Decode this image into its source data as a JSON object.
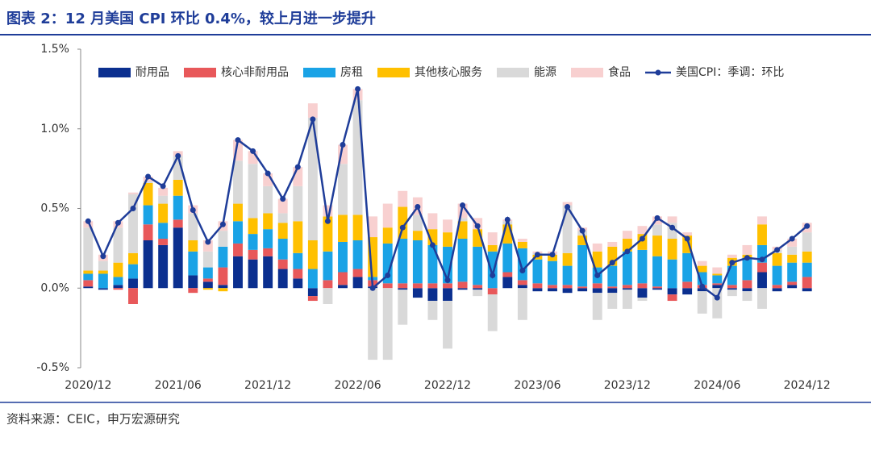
{
  "header": {
    "title": "图表 2：12 月美国 CPI 环比 0.4%，较上月进一步提升"
  },
  "footer": {
    "source": "资料来源：CEIC，申万宏源研究"
  },
  "chart_data": {
    "type": "bar",
    "categories": [
      "2020/12",
      null,
      null,
      null,
      null,
      null,
      "2021/06",
      null,
      null,
      null,
      null,
      null,
      "2021/12",
      null,
      null,
      null,
      null,
      null,
      "2022/06",
      null,
      null,
      null,
      null,
      null,
      "2022/12",
      null,
      null,
      null,
      null,
      null,
      "2023/06",
      null,
      null,
      null,
      null,
      null,
      "2023/12",
      null,
      null,
      null,
      null,
      null,
      "2024/06",
      null,
      null,
      null,
      null,
      null,
      "2024/12"
    ],
    "series": [
      {
        "name": "耐用品",
        "color": "#0b2f8f",
        "values": [
          0.01,
          -0.01,
          0.02,
          0.06,
          0.3,
          0.27,
          0.38,
          0.08,
          0.04,
          0.02,
          0.2,
          0.18,
          0.2,
          0.12,
          0.06,
          -0.05,
          0.0,
          0.02,
          0.07,
          0.01,
          0.0,
          -0.01,
          -0.06,
          -0.08,
          -0.08,
          -0.01,
          -0.01,
          0.0,
          0.07,
          0.02,
          -0.02,
          -0.02,
          -0.03,
          -0.02,
          -0.03,
          -0.03,
          -0.01,
          -0.06,
          -0.01,
          -0.04,
          -0.04,
          -0.02,
          0.02,
          -0.01,
          -0.02,
          0.1,
          -0.02,
          0.02,
          -0.02
        ]
      },
      {
        "name": "核心非耐用品",
        "color": "#e8585a",
        "values": [
          0.04,
          0.0,
          -0.01,
          -0.1,
          0.1,
          0.04,
          0.05,
          -0.03,
          0.02,
          0.11,
          0.08,
          0.06,
          0.05,
          0.06,
          0.06,
          -0.03,
          0.05,
          0.08,
          0.05,
          0.04,
          0.03,
          0.03,
          0.03,
          0.03,
          0.03,
          0.04,
          0.02,
          -0.04,
          0.03,
          0.03,
          0.03,
          0.02,
          0.02,
          0.01,
          0.03,
          0.01,
          0.02,
          0.03,
          0.01,
          -0.04,
          0.04,
          0.02,
          0.01,
          0.02,
          0.05,
          0.06,
          0.02,
          0.02,
          0.07
        ]
      },
      {
        "name": "房租",
        "color": "#1aa3e6",
        "values": [
          0.04,
          0.09,
          0.05,
          0.09,
          0.12,
          0.1,
          0.15,
          0.15,
          0.07,
          0.13,
          0.14,
          0.1,
          0.12,
          0.13,
          0.1,
          0.12,
          0.18,
          0.19,
          0.18,
          0.02,
          0.25,
          0.28,
          0.27,
          0.24,
          0.23,
          0.27,
          0.24,
          0.23,
          0.18,
          0.2,
          0.15,
          0.15,
          0.12,
          0.26,
          0.1,
          0.13,
          0.21,
          0.21,
          0.19,
          0.18,
          0.18,
          0.08,
          0.05,
          0.12,
          0.14,
          0.11,
          0.12,
          0.12,
          0.09
        ]
      },
      {
        "name": "其他核心服务",
        "color": "#ffc000",
        "values": [
          0.02,
          0.02,
          0.09,
          0.07,
          0.14,
          0.12,
          0.1,
          0.07,
          -0.01,
          -0.02,
          0.11,
          0.1,
          0.1,
          0.1,
          0.2,
          0.18,
          0.22,
          0.17,
          0.16,
          0.25,
          0.1,
          0.2,
          0.06,
          0.1,
          0.09,
          0.11,
          0.11,
          0.04,
          0.12,
          0.04,
          0.03,
          0.04,
          0.08,
          0.06,
          0.1,
          0.12,
          0.08,
          0.1,
          0.13,
          0.13,
          0.11,
          0.04,
          0.01,
          0.05,
          0.02,
          0.13,
          0.08,
          0.05,
          0.07
        ]
      },
      {
        "name": "能源",
        "color": "#d9d9d9",
        "values": [
          0.27,
          0.06,
          0.22,
          0.37,
          0.01,
          0.05,
          0.15,
          0.17,
          0.1,
          0.1,
          0.27,
          0.34,
          0.17,
          0.06,
          0.22,
          0.77,
          -0.1,
          0.32,
          0.72,
          -0.45,
          -0.45,
          -0.22,
          0.1,
          -0.12,
          -0.3,
          0.02,
          -0.04,
          -0.23,
          0.02,
          -0.2,
          0.01,
          0.0,
          0.3,
          0.03,
          -0.17,
          -0.1,
          -0.12,
          -0.02,
          0.07,
          0.1,
          0.0,
          -0.14,
          -0.19,
          -0.04,
          -0.06,
          -0.13,
          0.02,
          0.05,
          0.12
        ]
      },
      {
        "name": "食品",
        "color": "#f8d0d0",
        "values": [
          0.04,
          0.04,
          0.04,
          0.01,
          0.03,
          0.05,
          0.03,
          0.05,
          0.07,
          0.06,
          0.13,
          0.08,
          0.08,
          0.09,
          0.12,
          0.09,
          0.07,
          0.12,
          0.07,
          0.13,
          0.15,
          0.1,
          0.11,
          0.1,
          0.08,
          0.09,
          0.07,
          0.08,
          0.01,
          0.02,
          0.01,
          0.02,
          0.02,
          0.02,
          0.05,
          0.03,
          0.05,
          0.05,
          0.05,
          0.04,
          0.02,
          0.03,
          0.04,
          0.02,
          0.06,
          0.05,
          0.02,
          0.05,
          0.06
        ]
      },
      {
        "name": "美国CPI：季调：环比",
        "color": "#1f3d99",
        "type": "line",
        "values": [
          0.42,
          0.2,
          0.41,
          0.5,
          0.7,
          0.64,
          0.83,
          0.49,
          0.29,
          0.4,
          0.93,
          0.86,
          0.72,
          0.56,
          0.76,
          1.06,
          0.42,
          0.9,
          1.25,
          0.0,
          0.08,
          0.38,
          0.51,
          0.27,
          0.05,
          0.52,
          0.39,
          0.08,
          0.43,
          0.11,
          0.21,
          0.21,
          0.51,
          0.36,
          0.08,
          0.16,
          0.23,
          0.31,
          0.44,
          0.38,
          0.31,
          0.01,
          -0.06,
          0.16,
          0.19,
          0.18,
          0.24,
          0.31,
          0.39
        ]
      }
    ],
    "ylim": [
      -0.5,
      1.5
    ],
    "yticks": [
      {
        "value": -0.5,
        "label": "-0.5%"
      },
      {
        "value": 0,
        "label": "0.0%"
      },
      {
        "value": 0.5,
        "label": "0.5%"
      },
      {
        "value": 1,
        "label": "1.0%"
      },
      {
        "value": 1.5,
        "label": "1.5%"
      }
    ],
    "legend": "top",
    "grid": false
  }
}
